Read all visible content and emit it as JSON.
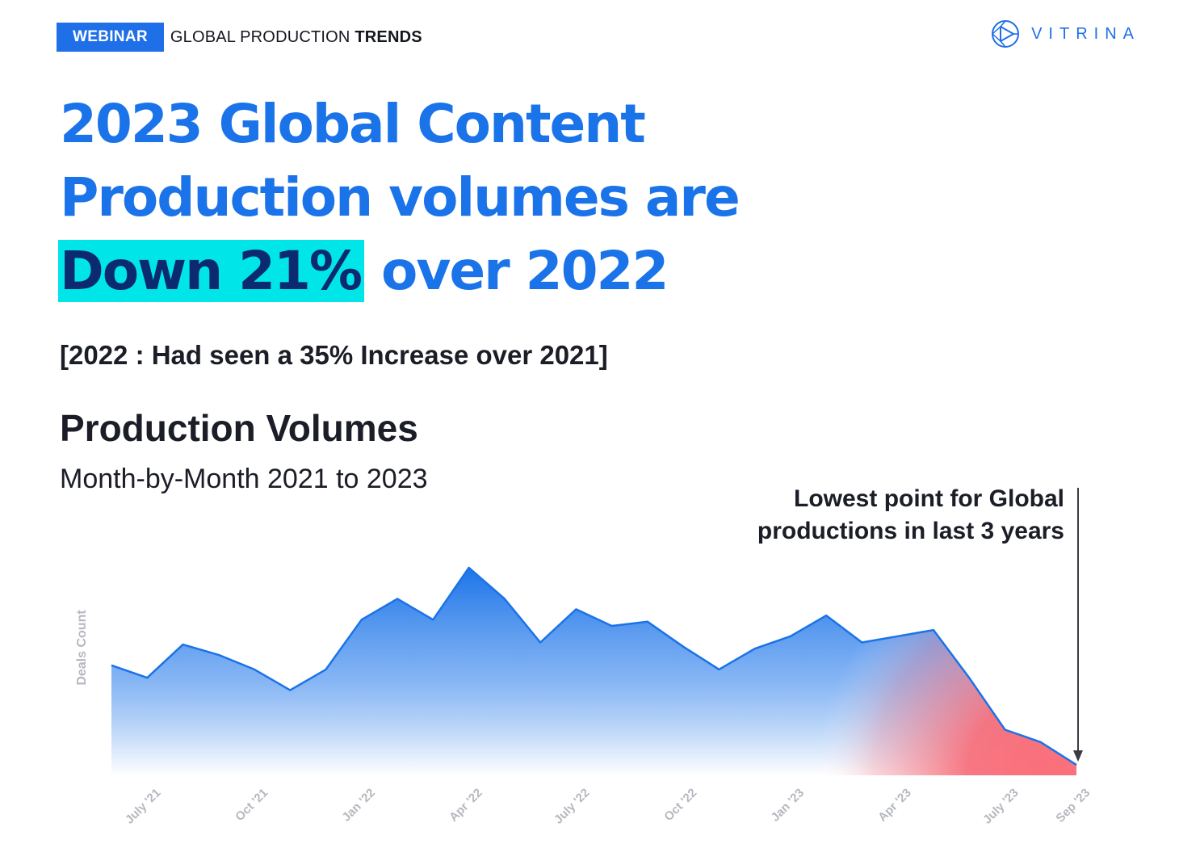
{
  "header": {
    "badge": "WEBINAR",
    "topic_prefix": "GLOBAL PRODUCTION",
    "topic_bold": "TRENDS",
    "logo_text": "VITRINA",
    "logo_icon": "vitrina-logo-icon"
  },
  "headline": {
    "line1": "2023 Global Content",
    "line2": "Production volumes are",
    "highlight": "Down 21%",
    "line3_rest": "over 2022"
  },
  "note": "[2022 : Had seen a 35% Increase over 2021]",
  "colors": {
    "accent": "#1a73e8",
    "highlight_bg": "#00e5e8",
    "highlight_text": "#0b2a6f",
    "area_top": "#1a73e8",
    "decline": "#f7707c",
    "text": "#1b1d27"
  },
  "chart_data": {
    "type": "area",
    "title": "Production Volumes",
    "subtitle": "Month-by-Month 2021 to 2023",
    "ylabel": "Deals Count",
    "xlabel": "",
    "y_tick_labels": false,
    "ylim": [
      0,
      100
    ],
    "grid": false,
    "x": [
      "Jun '21",
      "July '21",
      "Aug '21",
      "Sep '21",
      "Oct '21",
      "Nov '21",
      "Dec '21",
      "Jan '22",
      "Feb '22",
      "Mar '22",
      "Apr '22",
      "May '22",
      "Jun '22",
      "July '22",
      "Aug '22",
      "Sep '22",
      "Oct '22",
      "Nov '22",
      "Dec '22",
      "Jan '23",
      "Feb '23",
      "Mar '23",
      "Apr '23",
      "May '23",
      "Jun '23",
      "July '23",
      "Aug '23",
      "Sep '23"
    ],
    "x_tick_labels": [
      "July '21",
      "Oct '21",
      "Jan '22",
      "Apr '22",
      "July '22",
      "Oct '22",
      "Jan '23",
      "Apr '23",
      "July '23",
      "Sep '23"
    ],
    "values": [
      53,
      47,
      63,
      58,
      51,
      41,
      51,
      75,
      85,
      75,
      100,
      85,
      64,
      80,
      72,
      74,
      62,
      51,
      61,
      67,
      77,
      64,
      67,
      70,
      47,
      22,
      16,
      5
    ],
    "annotation": {
      "text_line1": "Lowest point for Global",
      "text_line2": "productions in last 3 years",
      "target": "Sep '23"
    },
    "highlight_region": "Apr '23 to Sep '23 decline"
  }
}
